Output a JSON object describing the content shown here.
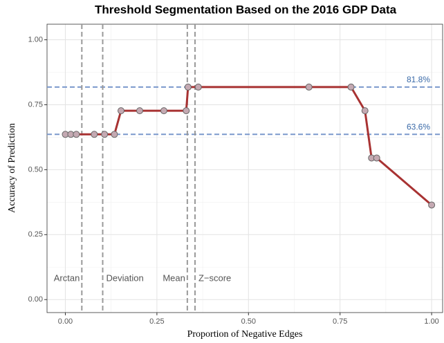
{
  "chart_data": {
    "type": "line",
    "title": "Threshold Segmentation Based on the 2016 GDP Data",
    "x_label": "Proportion of Negative Edges",
    "y_label": "Accuracy of Prediction",
    "series": [
      {
        "name": "Accuracy",
        "color": "#a83232",
        "x": [
          0,
          0.015,
          0.03,
          0.079,
          0.107,
          0.134,
          0.152,
          0.203,
          0.269,
          0.33,
          0.335,
          0.363,
          0.665,
          0.78,
          0.818,
          0.836,
          0.85,
          1.0
        ],
        "values": [
          0.636,
          0.636,
          0.636,
          0.636,
          0.636,
          0.636,
          0.727,
          0.727,
          0.727,
          0.727,
          0.818,
          0.818,
          0.818,
          0.818,
          0.727,
          0.545,
          0.545,
          0.364
        ]
      }
    ],
    "xlim": [
      -0.05,
      1.03
    ],
    "ylim": [
      -0.05,
      1.06
    ],
    "xticks": [
      {
        "value": 0,
        "label": "0.00"
      },
      {
        "value": 0.25,
        "label": "0.25"
      },
      {
        "value": 0.5,
        "label": "0.50"
      },
      {
        "value": 0.75,
        "label": "0.75"
      },
      {
        "value": 1,
        "label": "1.00"
      }
    ],
    "yticks": [
      {
        "value": 0,
        "label": "0.00"
      },
      {
        "value": 0.25,
        "label": "0.25"
      },
      {
        "value": 0.5,
        "label": "0.50"
      },
      {
        "value": 0.75,
        "label": "0.75"
      },
      {
        "value": 1,
        "label": "1.00"
      }
    ],
    "x_minor_grid": [
      0.125,
      0.375,
      0.625,
      0.875
    ],
    "y_minor_grid": [
      0.125,
      0.375,
      0.625,
      0.875
    ],
    "grid": true,
    "hlines": [
      {
        "value": 0.818,
        "label": "81.8%"
      },
      {
        "value": 0.636,
        "label": "63.6%"
      }
    ],
    "hline_color": "#7a98cc",
    "vlines": [
      {
        "value": 0.045,
        "label": "Arctan",
        "side": "left"
      },
      {
        "value": 0.102,
        "label": "Deviation",
        "side": "right"
      },
      {
        "value": 0.333,
        "label": "Mean",
        "side": "left"
      },
      {
        "value": 0.354,
        "label": "Z−score",
        "side": "right"
      }
    ],
    "vline_color": "#999999",
    "vline_label_y": 0.08
  }
}
